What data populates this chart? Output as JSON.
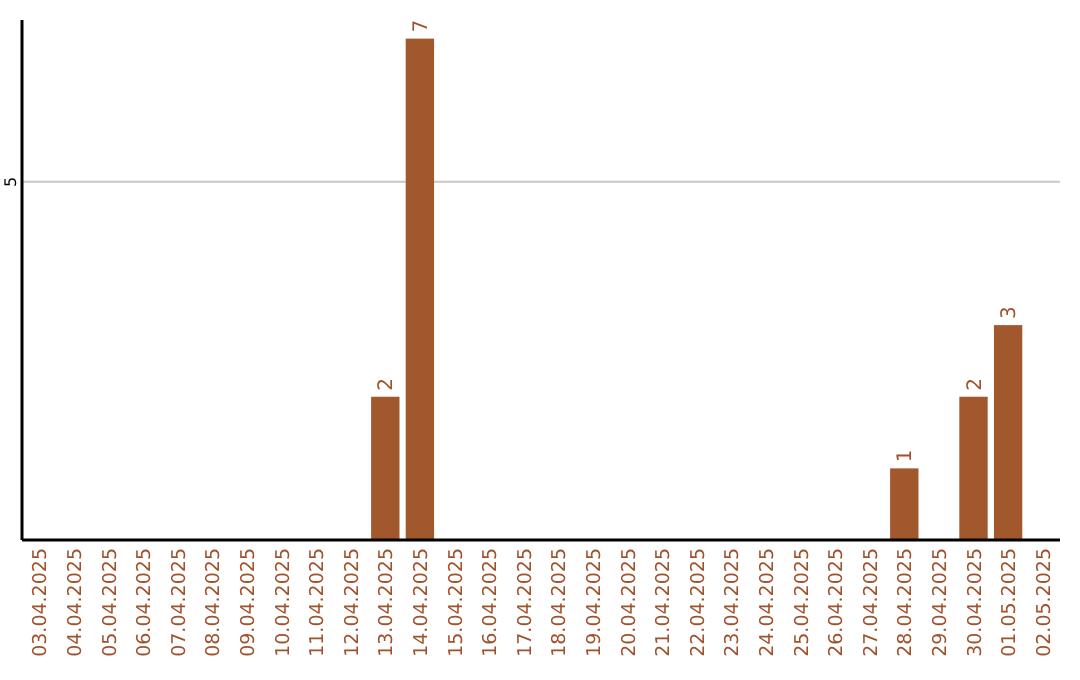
{
  "chart_data": {
    "type": "bar",
    "categories": [
      "03.04.2025",
      "04.04.2025",
      "05.04.2025",
      "06.04.2025",
      "07.04.2025",
      "08.04.2025",
      "09.04.2025",
      "10.04.2025",
      "11.04.2025",
      "12.04.2025",
      "13.04.2025",
      "14.04.2025",
      "15.04.2025",
      "16.04.2025",
      "17.04.2025",
      "18.04.2025",
      "19.04.2025",
      "20.04.2025",
      "21.04.2025",
      "22.04.2025",
      "23.04.2025",
      "24.04.2025",
      "25.04.2025",
      "26.04.2025",
      "27.04.2025",
      "28.04.2025",
      "29.04.2025",
      "30.04.2025",
      "01.05.2025",
      "02.05.2025"
    ],
    "values": [
      0,
      0,
      0,
      0,
      0,
      0,
      0,
      0,
      0,
      0,
      2,
      7,
      0,
      0,
      0,
      0,
      0,
      0,
      0,
      0,
      0,
      0,
      0,
      0,
      0,
      1,
      0,
      2,
      3,
      0
    ],
    "value_labels": [
      null,
      null,
      null,
      null,
      null,
      null,
      null,
      null,
      null,
      null,
      "2",
      "7",
      null,
      null,
      null,
      null,
      null,
      null,
      null,
      null,
      null,
      null,
      null,
      null,
      null,
      "1",
      null,
      "2",
      "3",
      null
    ],
    "color": "#a0582c",
    "ylim": [
      0,
      7.26
    ],
    "yticks": [
      5
    ],
    "grid": "y"
  }
}
